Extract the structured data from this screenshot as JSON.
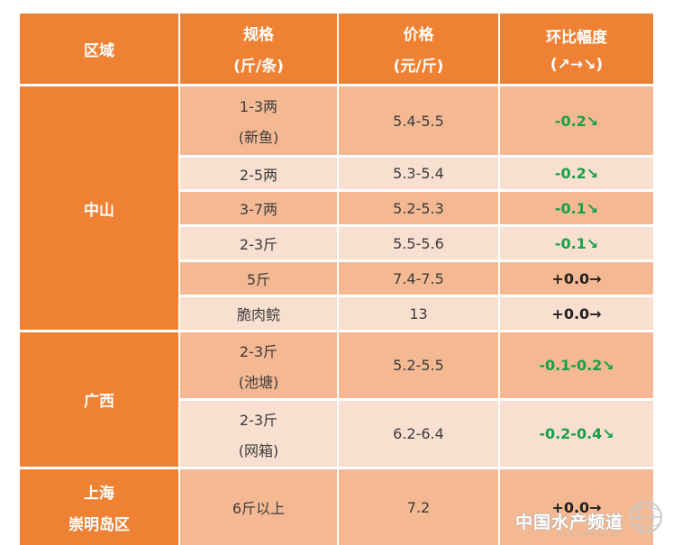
{
  "header": {
    "region": "区域",
    "spec_line1": "规格",
    "spec_line2": "(斤/条)",
    "price_line1": "价格",
    "price_line2": "(元/斤)",
    "change_line1": "环比幅度",
    "change_line2": "(↗→↘)"
  },
  "regions": [
    "中山",
    "广西",
    "上海",
    "崇明岛区"
  ],
  "rows": [
    {
      "spec": "1-3两",
      "spec2": "(新鱼)",
      "price": "5.4-5.5",
      "change": "-0.2↘"
    },
    {
      "spec": "2-5两",
      "spec2": "",
      "price": "5.3-5.4",
      "change": "-0.2↘"
    },
    {
      "spec": "3-7两",
      "spec2": "",
      "price": "5.2-5.3",
      "change": "-0.1↘"
    },
    {
      "spec": "2-3斤",
      "spec2": "",
      "price": "5.5-5.6",
      "change": "-0.1↘"
    },
    {
      "spec": "5斤",
      "spec2": "",
      "price": "7.4-7.5",
      "change": "+0.0→"
    },
    {
      "spec": "脆肉鲩",
      "spec2": "",
      "price": "13",
      "change": "+0.0→"
    },
    {
      "spec": "2-3斤",
      "spec2": "(池塘)",
      "price": "5.2-5.5",
      "change": "-0.1-0.2↘"
    },
    {
      "spec": "2-3斤",
      "spec2": "(网箱)",
      "price": "6.2-6.4",
      "change": "-0.2-0.4↘"
    },
    {
      "spec": "6斤以上",
      "spec2": "",
      "price": "7.2",
      "change": "+0.0→"
    }
  ],
  "colors": {
    "header": "#ee8133",
    "row_dark": "#f4b993",
    "row_light": "#f9dfd0",
    "down": "#16a049"
  },
  "watermark": {
    "text": "中国水产频道",
    "sub": "www.fishfirst.cn",
    "icon": "globe-logo-icon"
  }
}
